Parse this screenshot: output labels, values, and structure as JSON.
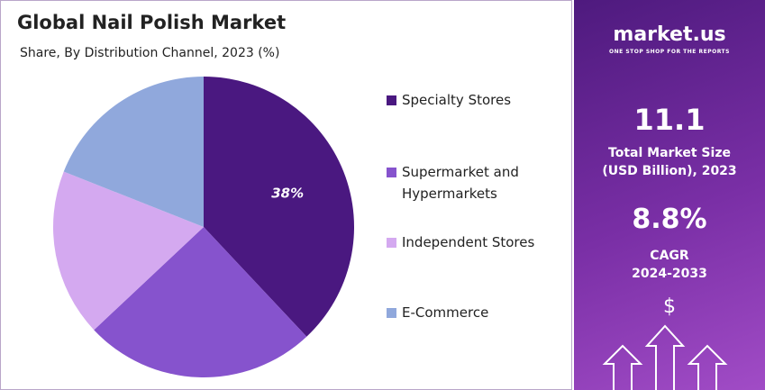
{
  "chart_data": {
    "type": "pie",
    "title": "Global Nail Polish Market",
    "subtitle": "Share, By Distribution Channel, 2023 (%)",
    "categories": [
      "Specialty Stores",
      "Supermarket and Hypermarkets",
      "Independent Stores",
      "E-Commerce"
    ],
    "values": [
      38,
      25,
      18,
      19
    ],
    "value_labels": [
      "38%",
      null,
      null,
      null
    ],
    "colors": [
      "#4a1880",
      "#8653cd",
      "#d4a9f0",
      "#90a8dc"
    ]
  },
  "panel": {
    "brand": "market.us",
    "tagline": "ONE STOP SHOP FOR THE REPORTS",
    "market_size": "11.1",
    "market_size_label": "Total Market Size (USD Billion), 2023",
    "cagr": "8.8%",
    "cagr_label": "CAGR",
    "cagr_period": "2024-2033",
    "icon": "$"
  }
}
